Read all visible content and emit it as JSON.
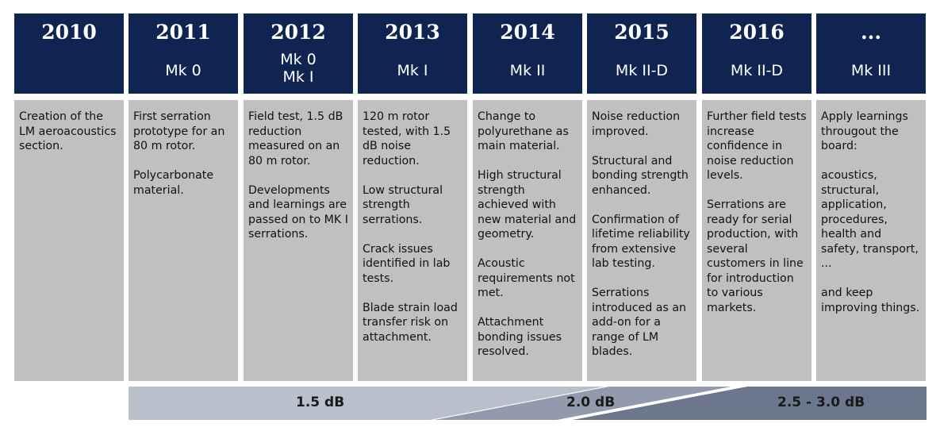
{
  "columns": [
    {
      "year": "2010",
      "mk": [],
      "paragraphs": [
        "Creation of the LM aeroacoustics section."
      ]
    },
    {
      "year": "2011",
      "mk": [
        "Mk 0"
      ],
      "paragraphs": [
        "First serration prototype for an 80 m rotor.",
        "Polycarbonate material."
      ]
    },
    {
      "year": "2012",
      "mk": [
        "Mk 0",
        "Mk I"
      ],
      "paragraphs": [
        "Field test, 1.5 dB reduction measured on an 80 m rotor.",
        "Developments and learnings are passed on to MK I serrations."
      ]
    },
    {
      "year": "2013",
      "mk": [
        "Mk I"
      ],
      "paragraphs": [
        "120 m rotor tested, with 1.5 dB noise reduction.",
        "Low structural strength serrations.",
        "Crack issues identified in lab tests.",
        "Blade strain load transfer risk on attachment."
      ]
    },
    {
      "year": "2014",
      "mk": [
        "Mk II"
      ],
      "paragraphs": [
        "Change to polyurethane as main material.",
        "High structural strength achieved with new material and geometry.",
        "Acoustic requirements not met.",
        "Attachment bonding issues resolved."
      ]
    },
    {
      "year": "2015",
      "mk": [
        "Mk II-D"
      ],
      "paragraphs": [
        "Noise reduction improved.",
        "Structural and bonding strength enhanced.",
        "Confirmation of lifetime reliability from extensive lab testing.",
        "Serrations introduced as an add-on for a range of LM blades."
      ]
    },
    {
      "year": "2016",
      "mk": [
        "Mk II-D"
      ],
      "paragraphs": [
        "Further field tests increase confidence in noise reduction levels.",
        "Serrations are ready for serial production, with several customers in line for introduction to various markets."
      ]
    },
    {
      "year": "...",
      "mk": [
        "Mk III"
      ],
      "paragraphs": [
        "Apply learnings througout the board:",
        "acoustics, structural, application, procedures, health and safety, transport, ...",
        "and keep improving things."
      ]
    }
  ],
  "noise_levels": [
    "1.5 dB",
    "2.0 dB",
    "2.5 - 3.0 dB"
  ],
  "colors": {
    "header_bg": "#0f2451",
    "card_bg": "#c0c0c0",
    "band_light": "#b9c0cc",
    "band_mid": "#929bad",
    "band_dark": "#6c778d"
  }
}
